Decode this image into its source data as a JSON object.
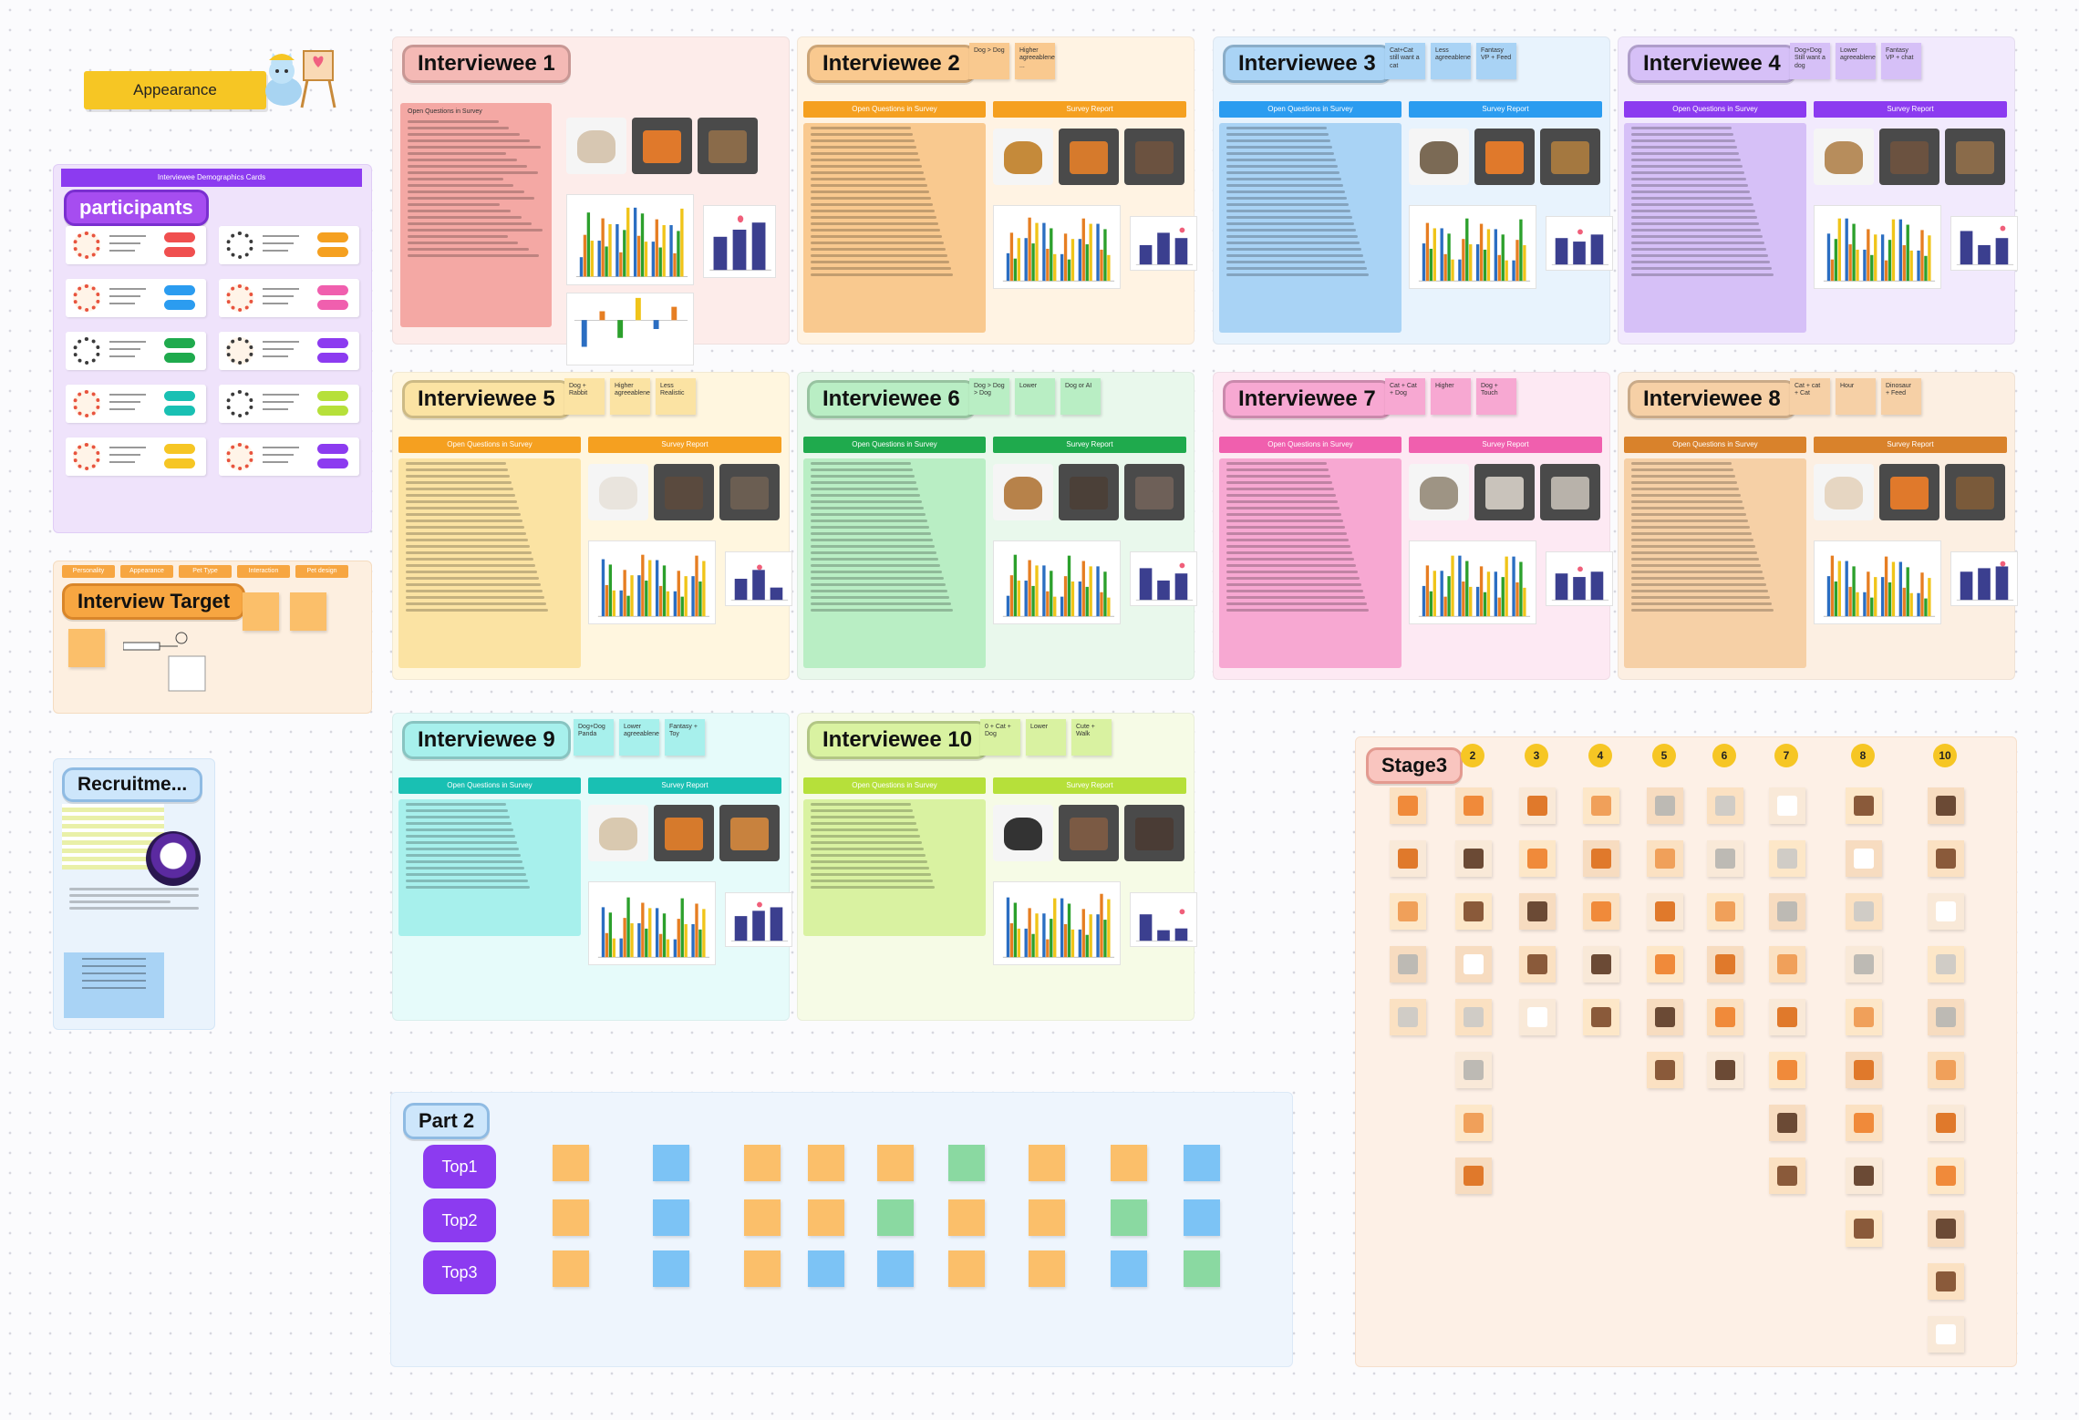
{
  "board": {
    "appearance_label": "Appearance",
    "participants": {
      "title": "participants",
      "header": "Interviewee Demographics Cards"
    },
    "interview_target": {
      "title": "Interview Target",
      "tags": [
        "Personality",
        "Appearance",
        "Pet Type",
        "Interaction",
        "Pet design"
      ]
    },
    "recruitment": {
      "title": "Recruitme..."
    },
    "interviewees": [
      {
        "title": "Interviewee 1",
        "theme": "#f4b9b5",
        "bg": "#fdecea",
        "bar": "#f5a25d",
        "left": "Open Questions in Survey",
        "right": "",
        "notes": []
      },
      {
        "title": "Interviewee 2",
        "theme": "#f9c98f",
        "bg": "#fff3e3",
        "bar": "#f5a020",
        "left": "Open Questions in Survey",
        "right": "Survey Report",
        "notes": [
          "Dog > Dog",
          "Higher agreeableness ..."
        ]
      },
      {
        "title": "Interviewee 3",
        "theme": "#a9d3f5",
        "bg": "#e8f3fd",
        "bar": "#2b9cf0",
        "left": "Open Questions in Survey",
        "right": "Survey Report",
        "notes": [
          "Cat+Cat still want a cat",
          "Less agreeableness",
          "Fantasy VP + Feed"
        ]
      },
      {
        "title": "Interviewee 4",
        "theme": "#d6c0f7",
        "bg": "#f2eafd",
        "bar": "#8c3bf0",
        "left": "Open Questions in Survey",
        "right": "Survey Report",
        "notes": [
          "Dog+Dog Still want a dog",
          "Lower agreeableness",
          "Fantasy VP + chat"
        ]
      },
      {
        "title": "Interviewee 5",
        "theme": "#fbe3a3",
        "bg": "#fff6df",
        "bar": "#f5a020",
        "left": "Open Questions in Survey",
        "right": "Survey Report",
        "notes": [
          "Dog + Rabbit",
          "Higher agreeableness",
          "Less Realistic"
        ]
      },
      {
        "title": "Interviewee 6",
        "theme": "#b9eec4",
        "bg": "#e9f8ec",
        "bar": "#1faa4d",
        "left": "Open Questions in Survey",
        "right": "Survey Report",
        "notes": [
          "Dog > Dog > Dog",
          "Lower",
          "Dog or AI"
        ]
      },
      {
        "title": "Interviewee 7",
        "theme": "#f7a8d2",
        "bg": "#fde9f3",
        "bar": "#f05fae",
        "left": "Open Questions in Survey",
        "right": "Survey Report",
        "notes": [
          "Cat + Cat + Dog",
          "Higher",
          "Dog + Touch"
        ]
      },
      {
        "title": "Interviewee 8",
        "theme": "#f6d0a6",
        "bg": "#fcefe2",
        "bar": "#d9822b",
        "left": "Open Questions in Survey",
        "right": "Survey Report",
        "notes": [
          "Cat + cat + Cat",
          "Hour",
          "Dinosaur + Feed"
        ]
      },
      {
        "title": "Interviewee 9",
        "theme": "#a7f0ec",
        "bg": "#e6fbfa",
        "bar": "#19c0b3",
        "left": "Open Questions in Survey",
        "right": "Survey Report",
        "notes": [
          "Dog+Dog Panda",
          "Lower agreeableness",
          "Fantasy + Toy"
        ]
      },
      {
        "title": "Interviewee 10",
        "theme": "#d9f2a1",
        "bg": "#f6fbe6",
        "bar": "#b6e03a",
        "left": "Open Questions in Survey",
        "right": "Survey Report",
        "notes": [
          "0 + Cat + Dog",
          "Lower",
          "Cute + Walk"
        ]
      }
    ],
    "stage3": {
      "title": "Stage3",
      "columns": [
        "2",
        "3",
        "4",
        "5",
        "6",
        "7",
        "8",
        "10"
      ]
    },
    "part2": {
      "title": "Part 2",
      "buttons": [
        "Top1",
        "Top2",
        "Top3"
      ]
    }
  },
  "colors": {
    "purple": "#8c3bf0",
    "yellow": "#f6c624",
    "orange_note": "#fbbf6a",
    "blue_note": "#7cc3f5",
    "green_note": "#8ad9a1"
  }
}
